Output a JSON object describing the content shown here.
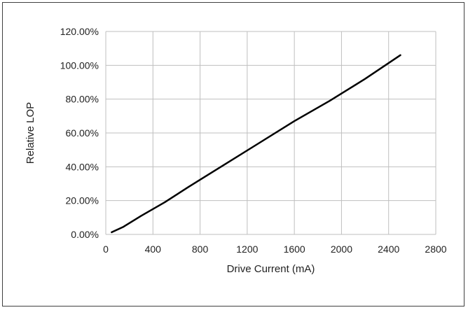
{
  "chart_data": {
    "type": "line",
    "title": "",
    "xlabel": "Drive Current (mA)",
    "ylabel": "Relative LOP",
    "xlim": [
      0,
      2800
    ],
    "ylim": [
      0,
      1.2
    ],
    "x_ticks": [
      0,
      400,
      800,
      1200,
      1600,
      2000,
      2400,
      2800
    ],
    "y_ticks": [
      0,
      0.2,
      0.4,
      0.6,
      0.8,
      1.0,
      1.2
    ],
    "x_tick_labels": [
      "0",
      "400",
      "800",
      "1200",
      "1600",
      "2000",
      "2400",
      "2800"
    ],
    "y_tick_labels": [
      "0.00%",
      "20.00%",
      "40.00%",
      "60.00%",
      "80.00%",
      "100.00%",
      "120.00%"
    ],
    "grid": true,
    "legend": "none",
    "series": [
      {
        "color": "#000000",
        "x": [
          50,
          150,
          300,
          500,
          700,
          1000,
          1300,
          1600,
          1900,
          2200,
          2500
        ],
        "y": [
          0.013,
          0.045,
          0.11,
          0.19,
          0.28,
          0.41,
          0.54,
          0.67,
          0.79,
          0.92,
          1.06
        ]
      }
    ]
  }
}
